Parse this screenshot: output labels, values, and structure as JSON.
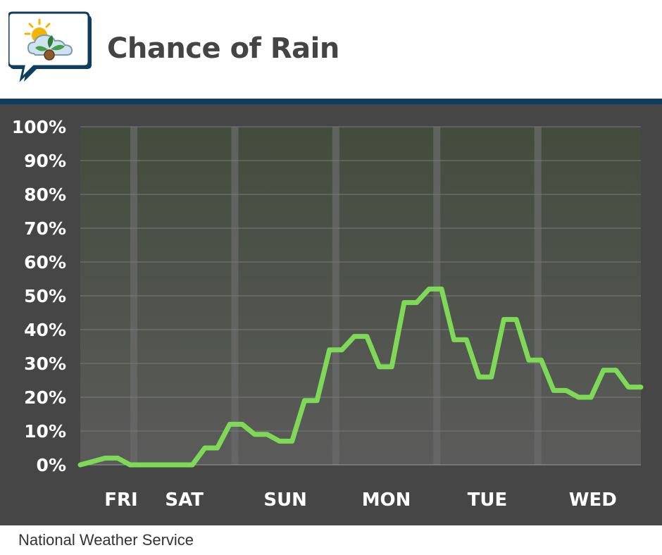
{
  "header": {
    "title": "Chance of Rain",
    "logo_icon": "weather-chat-logo-icon"
  },
  "footer": {
    "source": "National Weather Service"
  },
  "colors": {
    "line": "#7ed957",
    "panel": "#464646",
    "plot_top": "#444c3d",
    "plot_bottom": "#5b5b5b",
    "header_rule": "#0e3d5e"
  },
  "chart_data": {
    "type": "line",
    "title": "Chance of Rain",
    "xlabel": "",
    "ylabel": "",
    "ylim": [
      0,
      100
    ],
    "y_tick_labels": [
      "0%",
      "10%",
      "20%",
      "30%",
      "40%",
      "50%",
      "60%",
      "70%",
      "80%",
      "90%",
      "100%"
    ],
    "day_labels": [
      "FRI",
      "SAT",
      "SUN",
      "MON",
      "TUE",
      "WED"
    ],
    "grid": true,
    "series": [
      {
        "values": [
          0,
          1,
          2,
          2,
          0,
          0,
          0,
          0,
          0,
          0,
          5,
          5,
          12,
          12,
          9,
          9,
          7,
          7,
          19,
          19,
          34,
          34,
          38,
          38,
          29,
          29,
          48,
          48,
          52,
          52,
          37,
          37,
          26,
          26,
          43,
          43,
          31,
          31,
          22,
          22,
          20,
          20,
          28,
          28,
          23,
          23
        ]
      }
    ]
  }
}
